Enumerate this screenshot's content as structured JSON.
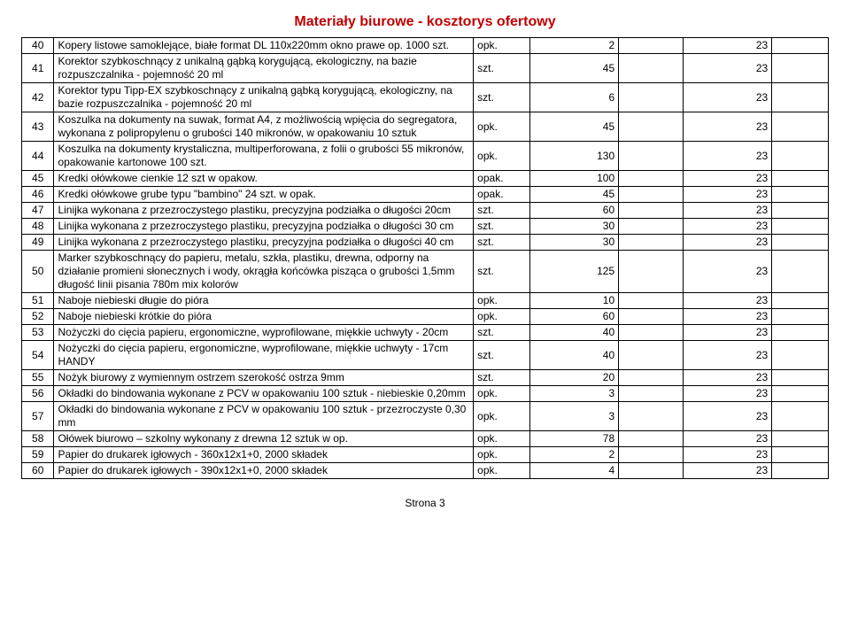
{
  "title": "Materiały biurowe -  kosztorys ofertowy",
  "footer": "Strona 3",
  "rows": [
    {
      "n": "40",
      "desc": "Kopery listowe samoklejące, białe format DL 110x220mm okno prawe op. 1000 szt.",
      "unit": "opk.",
      "qty": "2",
      "days": "23"
    },
    {
      "n": "41",
      "desc": "Korektor szybkoschnący z unikalną gąbką korygującą, ekologiczny, na bazie rozpuszczalnika - pojemność 20 ml",
      "unit": "szt.",
      "qty": "45",
      "days": "23"
    },
    {
      "n": "42",
      "desc": "Korektor typu Tipp-EX szybkoschnący z unikalną gąbką korygującą, ekologiczny, na bazie rozpuszczalnika - pojemność 20 ml",
      "unit": "szt.",
      "qty": "6",
      "days": "23"
    },
    {
      "n": "43",
      "desc": "Koszulka na dokumenty  na suwak, format A4, z możliwością wpięcia do segregatora, wykonana z polipropylenu o grubości 140 mikronów, w opakowaniu 10 sztuk",
      "unit": "opk.",
      "qty": "45",
      "days": "23"
    },
    {
      "n": "44",
      "desc": "Koszulka na dokumenty krystaliczna, multiperforowana, z folii o grubości 55 mikronów, opakowanie kartonowe 100 szt.",
      "unit": "opk.",
      "qty": "130",
      "days": "23"
    },
    {
      "n": "45",
      "desc": "Kredki ołówkowe cienkie 12 szt w opakow.",
      "unit": "opak.",
      "qty": "100",
      "days": "23"
    },
    {
      "n": "46",
      "desc": "Kredki ołówkowe grube typu \"bambino\" 24 szt. w opak.",
      "unit": "opak.",
      "qty": "45",
      "days": "23"
    },
    {
      "n": "47",
      "desc": "Linijka wykonana z przezroczystego plastiku, precyzyjna podziałka o długości 20cm",
      "unit": "szt.",
      "qty": "60",
      "days": "23"
    },
    {
      "n": "48",
      "desc": "Linijka wykonana z przezroczystego plastiku, precyzyjna podziałka o długości 30 cm",
      "unit": "szt.",
      "qty": "30",
      "days": "23"
    },
    {
      "n": "49",
      "desc": "Linijka wykonana z przezroczystego plastiku, precyzyjna podziałka o długości 40 cm",
      "unit": "szt.",
      "qty": "30",
      "days": "23"
    },
    {
      "n": "50",
      "desc": "Marker szybkoschnący do papieru, metalu, szkła, plastiku, drewna, odporny na działanie promieni słonecznych i wody, okrągła końcówka pisząca o grubości 1,5mm długość linii pisania 780m mix kolorów",
      "unit": "szt.",
      "qty": "125",
      "days": "23"
    },
    {
      "n": "51",
      "desc": "Naboje niebieski  długie  do pióra",
      "unit": "opk.",
      "qty": "10",
      "days": "23"
    },
    {
      "n": "52",
      "desc": "Naboje niebieski krótkie do pióra",
      "unit": "opk.",
      "qty": "60",
      "days": "23"
    },
    {
      "n": "53",
      "desc": "Nożyczki  do cięcia papieru, ergonomiczne, wyprofilowane, miękkie uchwyty -  20cm",
      "unit": "szt.",
      "qty": "40",
      "days": "23"
    },
    {
      "n": "54",
      "desc": "Nożyczki  do cięcia papieru, ergonomiczne, wyprofilowane, miękkie uchwyty - 17cm HANDY",
      "unit": "szt.",
      "qty": "40",
      "days": "23"
    },
    {
      "n": "55",
      "desc": "Nożyk biurowy  z wymiennym ostrzem szerokość ostrza 9mm",
      "unit": "szt.",
      "qty": "20",
      "days": "23"
    },
    {
      "n": "56",
      "desc": "Okładki do bindowania wykonane z PCV w opakowaniu 100 sztuk   - niebieskie 0,20mm",
      "unit": "opk.",
      "qty": "3",
      "days": "23"
    },
    {
      "n": "57",
      "desc": "Okładki do bindowania wykonane z PCV w opakowaniu 100 sztuk - przezroczyste 0,30 mm",
      "unit": "opk.",
      "qty": "3",
      "days": "23"
    },
    {
      "n": "58",
      "desc": "Ołówek biurowo – szkolny wykonany z drewna  12 sztuk w op.",
      "unit": "opk.",
      "qty": "78",
      "days": "23"
    },
    {
      "n": "59",
      "desc": "Papier  do drukarek igłowych - 360x12x1+0, 2000 składek",
      "unit": "opk.",
      "qty": "2",
      "days": "23"
    },
    {
      "n": "60",
      "desc": "Papier do drukarek igłowych - 390x12x1+0, 2000 składek",
      "unit": "opk.",
      "qty": "4",
      "days": "23"
    }
  ]
}
